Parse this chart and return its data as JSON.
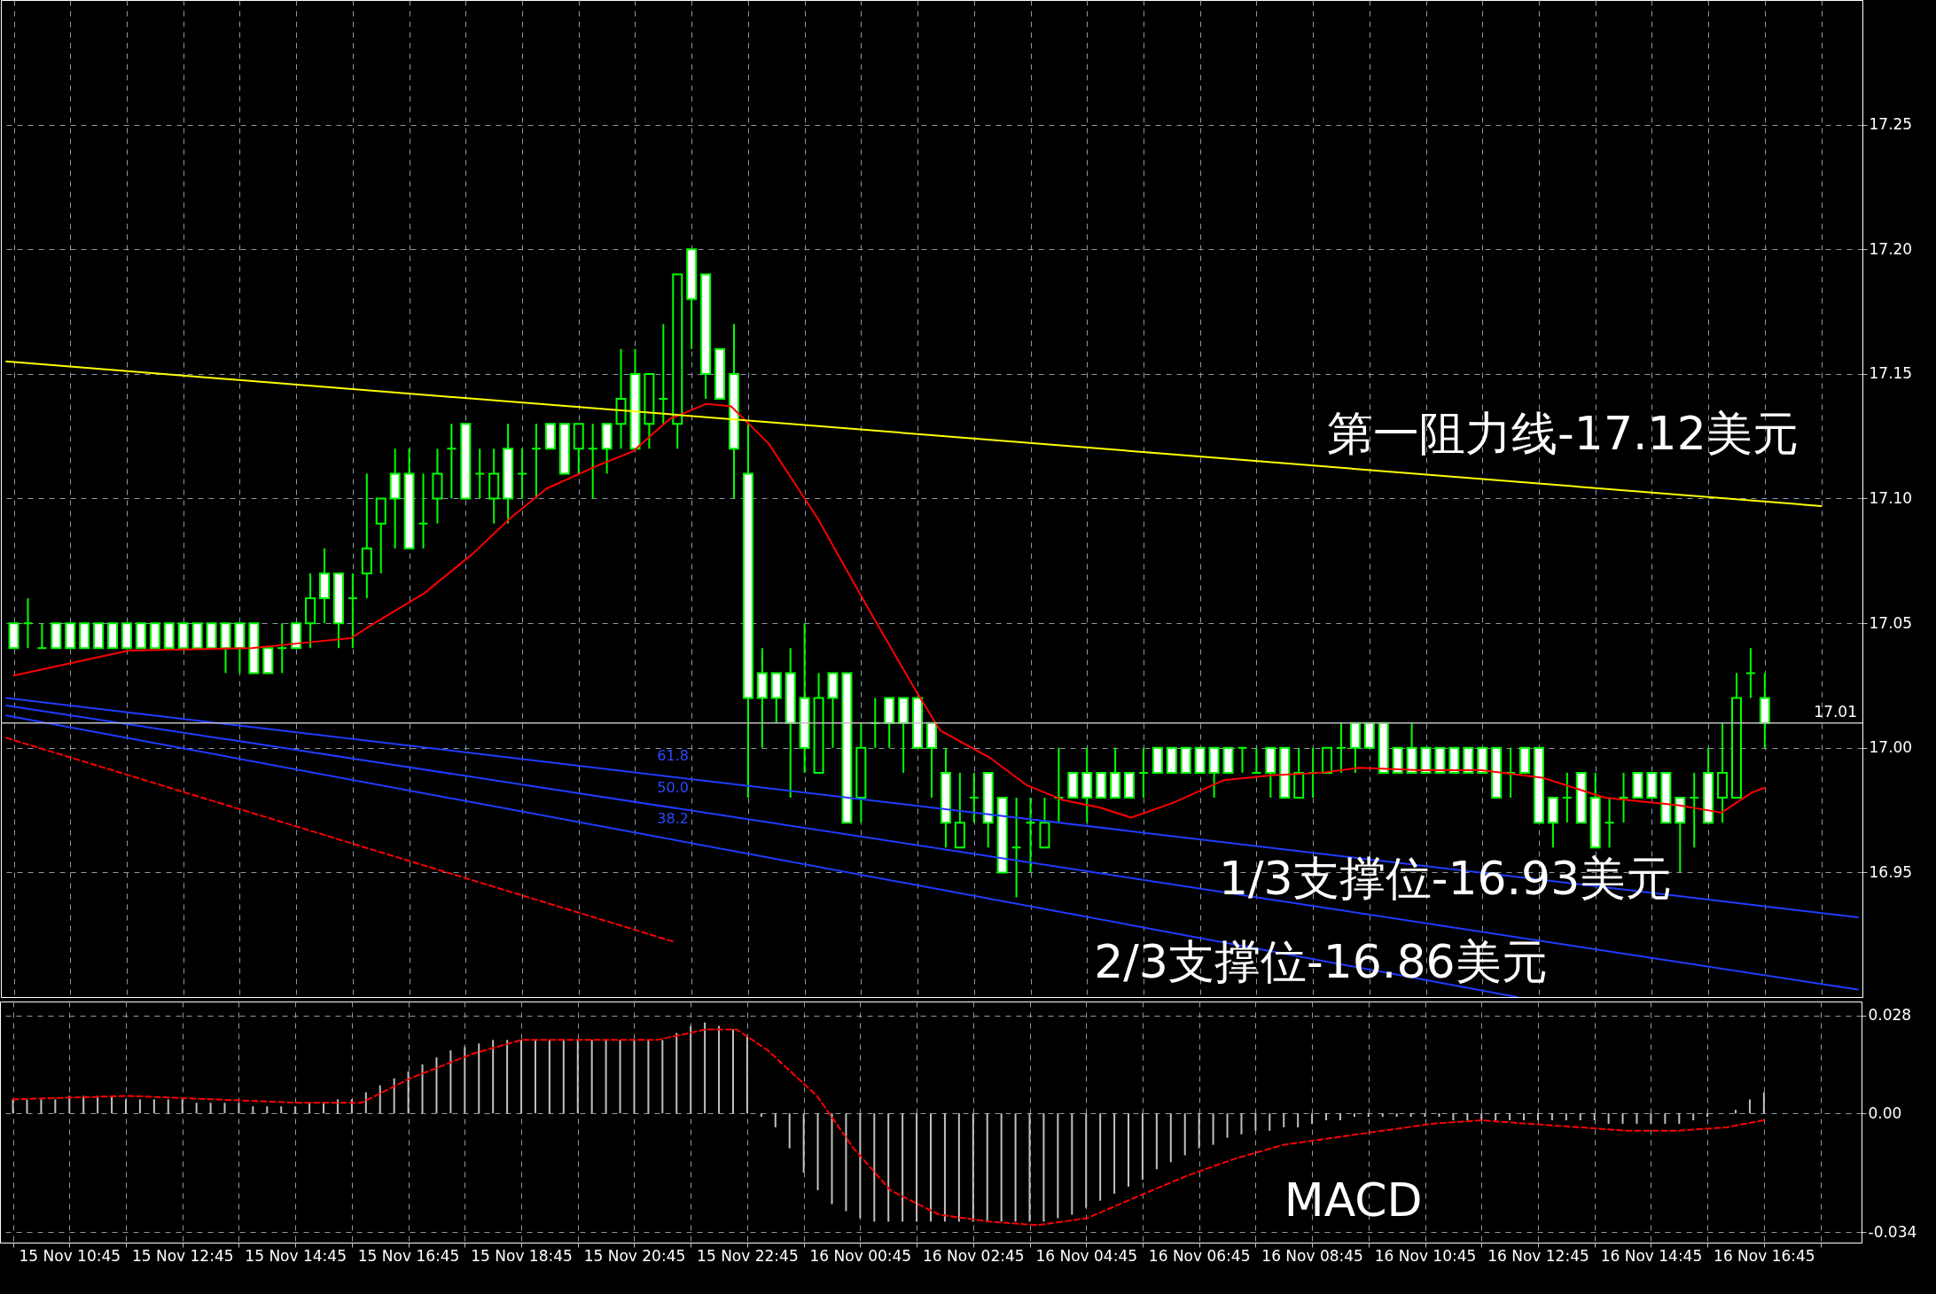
{
  "chart_data": [
    {
      "type": "candlestick",
      "color": "#00ff00",
      "tick_labels": "y",
      "grid": true,
      "xlim": [
        "--11-15T09:36",
        "--11-16T18:24"
      ],
      "ylim": [
        16.9,
        17.3
      ],
      "xticks": [
        {
          "value": "--11-15T09:45",
          "label": null
        },
        {
          "value": "--11-15T10:45",
          "label": null
        },
        {
          "value": "--11-15T11:45",
          "label": null
        },
        {
          "value": "--11-15T12:45",
          "label": null
        },
        {
          "value": "--11-15T13:45",
          "label": null
        },
        {
          "value": "--11-15T14:45",
          "label": null
        },
        {
          "value": "--11-15T15:45",
          "label": null
        },
        {
          "value": "--11-15T16:45",
          "label": null
        },
        {
          "value": "--11-15T17:45",
          "label": null
        },
        {
          "value": "--11-15T18:45",
          "label": null
        },
        {
          "value": "--11-15T19:45",
          "label": null
        },
        {
          "value": "--11-15T20:45",
          "label": null
        },
        {
          "value": "--11-15T21:45",
          "label": null
        },
        {
          "value": "--11-15T22:45",
          "label": null
        },
        {
          "value": "--11-15T23:45",
          "label": null
        },
        {
          "value": "--11-16T00:45",
          "label": null
        },
        {
          "value": "--11-16T01:45",
          "label": null
        },
        {
          "value": "--11-16T02:45",
          "label": null
        },
        {
          "value": "--11-16T03:45",
          "label": null
        },
        {
          "value": "--11-16T04:45",
          "label": null
        },
        {
          "value": "--11-16T05:45",
          "label": null
        },
        {
          "value": "--11-16T06:45",
          "label": null
        },
        {
          "value": "--11-16T07:45",
          "label": null
        },
        {
          "value": "--11-16T08:45",
          "label": null
        },
        {
          "value": "--11-16T09:45",
          "label": null
        },
        {
          "value": "--11-16T10:45",
          "label": null
        },
        {
          "value": "--11-16T11:45",
          "label": null
        },
        {
          "value": "--11-16T12:45",
          "label": null
        },
        {
          "value": "--11-16T13:45",
          "label": null
        },
        {
          "value": "--11-16T14:45",
          "label": null
        },
        {
          "value": "--11-16T15:45",
          "label": null
        },
        {
          "value": "--11-16T16:45",
          "label": null
        },
        {
          "value": "--11-16T17:45",
          "label": null
        }
      ],
      "yticks": [
        16.95,
        {
          "value": 17.0,
          "label": "17.00"
        },
        17.05,
        {
          "value": 17.1,
          "label": "17.10"
        },
        17.15,
        {
          "value": 17.2,
          "label": "17.20"
        },
        17.25
      ],
      "x": [
        "--11-15T09:45",
        "--11-15T10:00",
        "--11-15T10:15",
        "--11-15T10:30",
        "--11-15T10:45",
        "--11-15T11:00",
        "--11-15T11:15",
        "--11-15T11:30",
        "--11-15T11:45",
        "--11-15T12:00",
        "--11-15T12:15",
        "--11-15T12:30",
        "--11-15T12:45",
        "--11-15T13:00",
        "--11-15T13:15",
        "--11-15T13:30",
        "--11-15T13:45",
        "--11-15T14:00",
        "--11-15T14:15",
        "--11-15T14:30",
        "--11-15T14:45",
        "--11-15T15:00",
        "--11-15T15:15",
        "--11-15T15:30",
        "--11-15T15:45",
        "--11-15T16:00",
        "--11-15T16:15",
        "--11-15T16:30",
        "--11-15T16:45",
        "--11-15T17:00",
        "--11-15T17:15",
        "--11-15T17:30",
        "--11-15T17:45",
        "--11-15T18:00",
        "--11-15T18:15",
        "--11-15T18:30",
        "--11-15T18:45",
        "--11-15T19:00",
        "--11-15T19:15",
        "--11-15T19:30",
        "--11-15T19:45",
        "--11-15T20:00",
        "--11-15T20:15",
        "--11-15T20:30",
        "--11-15T20:45",
        "--11-15T21:00",
        "--11-15T21:15",
        "--11-15T21:30",
        "--11-15T21:45",
        "--11-15T22:00",
        "--11-15T22:15",
        "--11-15T22:30",
        "--11-15T22:45",
        "--11-15T23:00",
        "--11-15T23:15",
        "--11-15T23:30",
        "--11-15T23:45",
        "--11-16T00:00",
        "--11-16T00:15",
        "--11-16T00:30",
        "--11-16T00:45",
        "--11-16T01:00",
        "--11-16T01:15",
        "--11-16T01:30",
        "--11-16T01:45",
        "--11-16T02:00",
        "--11-16T02:15",
        "--11-16T02:30",
        "--11-16T02:45",
        "--11-16T03:00",
        "--11-16T03:15",
        "--11-16T03:30",
        "--11-16T03:45",
        "--11-16T04:00",
        "--11-16T04:15",
        "--11-16T04:30",
        "--11-16T04:45",
        "--11-16T05:00",
        "--11-16T05:15",
        "--11-16T05:30",
        "--11-16T05:45",
        "--11-16T06:00",
        "--11-16T06:15",
        "--11-16T06:30",
        "--11-16T06:45",
        "--11-16T07:00",
        "--11-16T07:15",
        "--11-16T07:30",
        "--11-16T07:45",
        "--11-16T08:00",
        "--11-16T08:15",
        "--11-16T08:30",
        "--11-16T08:45",
        "--11-16T09:00",
        "--11-16T09:15",
        "--11-16T09:30",
        "--11-16T09:45",
        "--11-16T10:00",
        "--11-16T10:15",
        "--11-16T10:30",
        "--11-16T10:45",
        "--11-16T11:00",
        "--11-16T11:15",
        "--11-16T11:30",
        "--11-16T11:45",
        "--11-16T12:00",
        "--11-16T12:15",
        "--11-16T12:30",
        "--11-16T12:45",
        "--11-16T13:00",
        "--11-16T13:15",
        "--11-16T13:30",
        "--11-16T13:45",
        "--11-16T14:00",
        "--11-16T14:15",
        "--11-16T14:30",
        "--11-16T14:45",
        "--11-16T15:00",
        "--11-16T15:15",
        "--11-16T15:30",
        "--11-16T15:45",
        "--11-16T16:00",
        "--11-16T16:15",
        "--11-16T16:30",
        "--11-16T16:45"
      ],
      "ohlc": [
        [
          17.05,
          17.05,
          17.04,
          17.04
        ],
        [
          17.05,
          17.06,
          17.04,
          17.05
        ],
        [
          17.04,
          17.05,
          17.04,
          17.04
        ],
        [
          17.05,
          17.05,
          17.04,
          17.04
        ],
        [
          17.05,
          17.05,
          17.04,
          17.04
        ],
        [
          17.05,
          17.05,
          17.04,
          17.04
        ],
        [
          17.05,
          17.05,
          17.04,
          17.04
        ],
        [
          17.05,
          17.05,
          17.04,
          17.04
        ],
        [
          17.05,
          17.05,
          17.04,
          17.04
        ],
        [
          17.05,
          17.05,
          17.04,
          17.04
        ],
        [
          17.05,
          17.05,
          17.04,
          17.04
        ],
        [
          17.05,
          17.05,
          17.04,
          17.04
        ],
        [
          17.05,
          17.05,
          17.04,
          17.04
        ],
        [
          17.05,
          17.05,
          17.04,
          17.04
        ],
        [
          17.05,
          17.05,
          17.04,
          17.04
        ],
        [
          17.05,
          17.05,
          17.03,
          17.04
        ],
        [
          17.05,
          17.05,
          17.03,
          17.04
        ],
        [
          17.05,
          17.05,
          17.03,
          17.03
        ],
        [
          17.04,
          17.04,
          17.03,
          17.03
        ],
        [
          17.04,
          17.05,
          17.03,
          17.04
        ],
        [
          17.05,
          17.05,
          17.04,
          17.04
        ],
        [
          17.05,
          17.07,
          17.04,
          17.06
        ],
        [
          17.07,
          17.08,
          17.05,
          17.06
        ],
        [
          17.07,
          17.07,
          17.04,
          17.05
        ],
        [
          17.06,
          17.07,
          17.04,
          17.06
        ],
        [
          17.07,
          17.11,
          17.06,
          17.08
        ],
        [
          17.09,
          17.1,
          17.07,
          17.1
        ],
        [
          17.11,
          17.12,
          17.08,
          17.1
        ],
        [
          17.11,
          17.12,
          17.08,
          17.08
        ],
        [
          17.09,
          17.11,
          17.08,
          17.09
        ],
        [
          17.1,
          17.12,
          17.09,
          17.11
        ],
        [
          17.12,
          17.13,
          17.1,
          17.12
        ],
        [
          17.13,
          17.13,
          17.1,
          17.1
        ],
        [
          17.11,
          17.12,
          17.1,
          17.11
        ],
        [
          17.1,
          17.12,
          17.09,
          17.11
        ],
        [
          17.12,
          17.13,
          17.09,
          17.1
        ],
        [
          17.11,
          17.12,
          17.1,
          17.11
        ],
        [
          17.12,
          17.13,
          17.1,
          17.12
        ],
        [
          17.13,
          17.13,
          17.12,
          17.12
        ],
        [
          17.13,
          17.13,
          17.11,
          17.11
        ],
        [
          17.12,
          17.13,
          17.11,
          17.13
        ],
        [
          17.12,
          17.13,
          17.1,
          17.12
        ],
        [
          17.13,
          17.13,
          17.11,
          17.12
        ],
        [
          17.13,
          17.16,
          17.12,
          17.14
        ],
        [
          17.15,
          17.16,
          17.12,
          17.12
        ],
        [
          17.13,
          17.15,
          17.12,
          17.15
        ],
        [
          17.14,
          17.17,
          17.13,
          17.14
        ],
        [
          17.13,
          17.19,
          17.12,
          17.19
        ],
        [
          17.2,
          17.2,
          17.16,
          17.18
        ],
        [
          17.19,
          17.19,
          17.14,
          17.15
        ],
        [
          17.16,
          17.16,
          17.14,
          17.14
        ],
        [
          17.15,
          17.17,
          17.1,
          17.12
        ],
        [
          17.11,
          17.13,
          16.98,
          17.02
        ],
        [
          17.03,
          17.04,
          17.0,
          17.02
        ],
        [
          17.03,
          17.03,
          17.01,
          17.02
        ],
        [
          17.03,
          17.04,
          16.98,
          17.01
        ],
        [
          17.02,
          17.05,
          16.99,
          17.0
        ],
        [
          16.99,
          17.03,
          16.99,
          17.02
        ],
        [
          17.03,
          17.03,
          17.0,
          17.02
        ],
        [
          17.03,
          17.03,
          16.97,
          16.97
        ],
        [
          16.98,
          17.01,
          16.97,
          17.0
        ],
        [
          17.01,
          17.02,
          17.0,
          17.01
        ],
        [
          17.02,
          17.02,
          17.0,
          17.01
        ],
        [
          17.02,
          17.02,
          16.99,
          17.01
        ],
        [
          17.02,
          17.02,
          17.0,
          17.0
        ],
        [
          17.01,
          17.01,
          16.98,
          17.0
        ],
        [
          16.99,
          17.0,
          16.96,
          16.97
        ],
        [
          16.96,
          16.99,
          16.96,
          16.97
        ],
        [
          16.98,
          16.99,
          16.97,
          16.98
        ],
        [
          16.99,
          16.99,
          16.96,
          16.97
        ],
        [
          16.98,
          16.98,
          16.95,
          16.95
        ],
        [
          16.96,
          16.98,
          16.94,
          16.96
        ],
        [
          16.97,
          16.98,
          16.95,
          16.97
        ],
        [
          16.96,
          16.98,
          16.96,
          16.97
        ],
        [
          16.98,
          17.0,
          16.97,
          16.98
        ],
        [
          16.99,
          16.99,
          16.98,
          16.98
        ],
        [
          16.99,
          17.0,
          16.97,
          16.98
        ],
        [
          16.99,
          16.99,
          16.98,
          16.98
        ],
        [
          16.99,
          17.0,
          16.98,
          16.98
        ],
        [
          16.99,
          16.99,
          16.98,
          16.98
        ],
        [
          16.99,
          17.0,
          16.98,
          16.99
        ],
        [
          17.0,
          17.0,
          16.99,
          16.99
        ],
        [
          17.0,
          17.0,
          16.99,
          16.99
        ],
        [
          17.0,
          17.0,
          16.99,
          16.99
        ],
        [
          17.0,
          17.0,
          16.99,
          16.99
        ],
        [
          17.0,
          17.0,
          16.98,
          16.99
        ],
        [
          17.0,
          17.0,
          16.99,
          16.99
        ],
        [
          17.0,
          17.0,
          16.99,
          17.0
        ],
        [
          16.99,
          17.0,
          16.99,
          16.99
        ],
        [
          17.0,
          17.0,
          16.98,
          16.99
        ],
        [
          17.0,
          17.0,
          16.98,
          16.98
        ],
        [
          16.98,
          17.0,
          16.98,
          16.99
        ],
        [
          16.99,
          17.0,
          16.98,
          16.99
        ],
        [
          16.99,
          17.0,
          16.99,
          17.0
        ],
        [
          17.0,
          17.01,
          16.99,
          17.0
        ],
        [
          17.01,
          17.01,
          16.99,
          17.0
        ],
        [
          17.01,
          17.01,
          17.0,
          17.0
        ],
        [
          17.01,
          17.01,
          16.99,
          16.99
        ],
        [
          17.0,
          17.0,
          16.99,
          16.99
        ],
        [
          17.0,
          17.01,
          16.99,
          16.99
        ],
        [
          17.0,
          17.0,
          16.99,
          16.99
        ],
        [
          17.0,
          17.0,
          16.99,
          16.99
        ],
        [
          17.0,
          17.0,
          16.99,
          16.99
        ],
        [
          17.0,
          17.0,
          16.99,
          16.99
        ],
        [
          17.0,
          17.0,
          16.99,
          16.99
        ],
        [
          17.0,
          17.0,
          16.98,
          16.98
        ],
        [
          16.99,
          17.0,
          16.98,
          16.99
        ],
        [
          17.0,
          17.0,
          16.99,
          16.99
        ],
        [
          17.0,
          17.0,
          16.97,
          16.97
        ],
        [
          16.98,
          16.98,
          16.96,
          16.97
        ],
        [
          16.98,
          16.99,
          16.97,
          16.98
        ],
        [
          16.99,
          16.99,
          16.97,
          16.97
        ],
        [
          16.98,
          16.99,
          16.96,
          16.96
        ],
        [
          16.97,
          16.98,
          16.96,
          16.97
        ],
        [
          16.98,
          16.99,
          16.97,
          16.98
        ],
        [
          16.99,
          16.99,
          16.98,
          16.98
        ],
        [
          16.99,
          16.99,
          16.98,
          16.98
        ],
        [
          16.99,
          16.99,
          16.97,
          16.97
        ],
        [
          16.98,
          16.98,
          16.95,
          16.97
        ],
        [
          16.98,
          16.99,
          16.96,
          16.98
        ],
        [
          16.99,
          17.0,
          16.97,
          16.97
        ],
        [
          16.98,
          17.01,
          16.97,
          16.99
        ],
        [
          16.98,
          17.03,
          16.98,
          17.02
        ],
        [
          17.03,
          17.04,
          17.02,
          17.03
        ],
        [
          17.02,
          17.03,
          17.0,
          17.01
        ]
      ],
      "series": [
        {
          "type": "line",
          "color": "#ff0000",
          "x": [
            "--11-15T09:45",
            "--11-15T11:47",
            "--11-15T13:58",
            "--11-15T14:50",
            "--11-15T15:43",
            "--11-15T16:08",
            "--11-15T17:01",
            "--11-15T17:53",
            "--11-15T18:32",
            "--11-15T19:11",
            "--11-15T20:04",
            "--11-15T20:43",
            "--11-15T21:22",
            "--11-15T22:01",
            "--11-15T22:27",
            "--11-15T23:07",
            "--11-15T23:59",
            "--11-16T00:51",
            "--11-16T01:43",
            "--11-16T02:09",
            "--11-16T03:02",
            "--11-16T03:41",
            "--11-16T04:20",
            "--11-16T04:59",
            "--11-16T05:32",
            "--11-16T06:17",
            "--11-16T07:10",
            "--11-16T08:02",
            "--11-16T08:54",
            "--11-16T09:34",
            "--11-16T10:39",
            "--11-16T11:44",
            "--11-16T12:49",
            "--11-16T13:55",
            "--11-16T15:13",
            "--11-16T15:59",
            "--11-16T16:31",
            "--11-16T16:45"
          ],
          "values": [
            17.029,
            17.039,
            17.04,
            17.042,
            17.044,
            17.05,
            17.062,
            17.078,
            17.092,
            17.104,
            17.113,
            17.119,
            17.132,
            17.138,
            17.137,
            17.122,
            17.092,
            17.057,
            17.023,
            17.007,
            16.996,
            16.985,
            16.979,
            16.976,
            16.972,
            16.978,
            16.987,
            16.989,
            16.99,
            16.992,
            16.991,
            16.991,
            16.988,
            16.98,
            16.977,
            16.974,
            16.982,
            16.984
          ]
        },
        {
          "type": "line",
          "color": "#ffff00",
          "x": [
            "--11-15T09:37",
            "--11-16T17:45"
          ],
          "values": [
            17.155,
            17.097
          ]
        },
        {
          "type": "line",
          "color": "#1f3cff",
          "x": [
            "--11-15T09:37",
            "--11-16T18:24"
          ],
          "values": [
            17.02,
            16.932
          ]
        },
        {
          "type": "line",
          "color": "#1f3cff",
          "x": [
            "--11-15T09:37",
            "--11-16T18:24"
          ],
          "values": [
            17.017,
            16.903
          ]
        },
        {
          "type": "line",
          "color": "#1f3cff",
          "x": [
            "--11-15T09:37",
            "--11-16T12:22"
          ],
          "values": [
            17.013,
            16.9
          ]
        },
        {
          "type": "line",
          "color": "#ff0000",
          "line_style": "dashed",
          "x": [
            "--11-15T09:37",
            "--11-15T21:28"
          ],
          "values": [
            17.004,
            16.922
          ]
        }
      ],
      "ref_lines": [
        {
          "axis": "y",
          "value": 17.01,
          "label": "17.01",
          "color": "#c0c0c0"
        }
      ],
      "annotations": [
        "第一阻力线-17.12美元",
        "1/3支撑位-16.93美元",
        "2/3支撑位-16.86美元",
        "61.8",
        "50.0",
        "38.2"
      ]
    },
    {
      "type": "bar",
      "color": "#c0c0c0",
      "grid": true,
      "xlim": [
        "--11-15T09:36",
        "--11-16T18:24"
      ],
      "ylim": [
        -0.037,
        0.032
      ],
      "xticks": [
        {
          "value": "--11-15T09:45",
          "label": null
        },
        {
          "value": "--11-15T10:45",
          "label": "15 Nov 10:45"
        },
        {
          "value": "--11-15T11:45",
          "label": null
        },
        {
          "value": "--11-15T12:45",
          "label": "15 Nov 12:45"
        },
        {
          "value": "--11-15T13:45",
          "label": null
        },
        {
          "value": "--11-15T14:45",
          "label": "15 Nov 14:45"
        },
        {
          "value": "--11-15T15:45",
          "label": null
        },
        {
          "value": "--11-15T16:45",
          "label": "15 Nov 16:45"
        },
        {
          "value": "--11-15T17:45",
          "label": null
        },
        {
          "value": "--11-15T18:45",
          "label": "15 Nov 18:45"
        },
        {
          "value": "--11-15T19:45",
          "label": null
        },
        {
          "value": "--11-15T20:45",
          "label": "15 Nov 20:45"
        },
        {
          "value": "--11-15T21:45",
          "label": null
        },
        {
          "value": "--11-15T22:45",
          "label": "15 Nov 22:45"
        },
        {
          "value": "--11-15T23:45",
          "label": null
        },
        {
          "value": "--11-16T00:45",
          "label": "16 Nov 00:45"
        },
        {
          "value": "--11-16T01:45",
          "label": null
        },
        {
          "value": "--11-16T02:45",
          "label": "16 Nov 02:45"
        },
        {
          "value": "--11-16T03:45",
          "label": null
        },
        {
          "value": "--11-16T04:45",
          "label": "16 Nov 04:45"
        },
        {
          "value": "--11-16T05:45",
          "label": null
        },
        {
          "value": "--11-16T06:45",
          "label": "16 Nov 06:45"
        },
        {
          "value": "--11-16T07:45",
          "label": null
        },
        {
          "value": "--11-16T08:45",
          "label": "16 Nov 08:45"
        },
        {
          "value": "--11-16T09:45",
          "label": null
        },
        {
          "value": "--11-16T10:45",
          "label": "16 Nov 10:45"
        },
        {
          "value": "--11-16T11:45",
          "label": null
        },
        {
          "value": "--11-16T12:45",
          "label": "16 Nov 12:45"
        },
        {
          "value": "--11-16T13:45",
          "label": null
        },
        {
          "value": "--11-16T14:45",
          "label": "16 Nov 14:45"
        },
        {
          "value": "--11-16T15:45",
          "label": null
        },
        {
          "value": "--11-16T16:45",
          "label": "16 Nov 16:45"
        },
        {
          "value": "--11-16T17:45",
          "label": null
        }
      ],
      "yticks": [
        0.028,
        {
          "value": 0,
          "label": "0.00"
        },
        -0.034
      ],
      "x": [
        "--11-15T09:45",
        "--11-15T10:00",
        "--11-15T10:15",
        "--11-15T10:30",
        "--11-15T10:45",
        "--11-15T11:00",
        "--11-15T11:15",
        "--11-15T11:30",
        "--11-15T11:45",
        "--11-15T12:00",
        "--11-15T12:15",
        "--11-15T12:30",
        "--11-15T12:45",
        "--11-15T13:00",
        "--11-15T13:15",
        "--11-15T13:30",
        "--11-15T13:45",
        "--11-15T14:00",
        "--11-15T14:15",
        "--11-15T14:30",
        "--11-15T14:45",
        "--11-15T15:00",
        "--11-15T15:15",
        "--11-15T15:30",
        "--11-15T15:45",
        "--11-15T16:00",
        "--11-15T16:15",
        "--11-15T16:30",
        "--11-15T16:45",
        "--11-15T17:00",
        "--11-15T17:15",
        "--11-15T17:30",
        "--11-15T17:45",
        "--11-15T18:00",
        "--11-15T18:15",
        "--11-15T18:30",
        "--11-15T18:45",
        "--11-15T19:00",
        "--11-15T19:15",
        "--11-15T19:30",
        "--11-15T19:45",
        "--11-15T20:00",
        "--11-15T20:15",
        "--11-15T20:30",
        "--11-15T20:45",
        "--11-15T21:00",
        "--11-15T21:15",
        "--11-15T21:30",
        "--11-15T21:45",
        "--11-15T22:00",
        "--11-15T22:15",
        "--11-15T22:30",
        "--11-15T22:45",
        "--11-15T23:00",
        "--11-15T23:15",
        "--11-15T23:30",
        "--11-15T23:45",
        "--11-16T00:00",
        "--11-16T00:15",
        "--11-16T00:30",
        "--11-16T00:45",
        "--11-16T01:00",
        "--11-16T01:15",
        "--11-16T01:30",
        "--11-16T01:45",
        "--11-16T02:00",
        "--11-16T02:15",
        "--11-16T02:30",
        "--11-16T02:45",
        "--11-16T03:00",
        "--11-16T03:15",
        "--11-16T03:30",
        "--11-16T03:45",
        "--11-16T04:00",
        "--11-16T04:15",
        "--11-16T04:30",
        "--11-16T04:45",
        "--11-16T05:00",
        "--11-16T05:15",
        "--11-16T05:30",
        "--11-16T05:45",
        "--11-16T06:00",
        "--11-16T06:15",
        "--11-16T06:30",
        "--11-16T06:45",
        "--11-16T07:00",
        "--11-16T07:15",
        "--11-16T07:30",
        "--11-16T07:45",
        "--11-16T08:00",
        "--11-16T08:15",
        "--11-16T08:30",
        "--11-16T08:45",
        "--11-16T09:00",
        "--11-16T09:15",
        "--11-16T09:30",
        "--11-16T09:45",
        "--11-16T10:00",
        "--11-16T10:15",
        "--11-16T10:30",
        "--11-16T10:45",
        "--11-16T11:00",
        "--11-16T11:15",
        "--11-16T11:30",
        "--11-16T11:45",
        "--11-16T12:00",
        "--11-16T12:15",
        "--11-16T12:30",
        "--11-16T12:45",
        "--11-16T13:00",
        "--11-16T13:15",
        "--11-16T13:30",
        "--11-16T13:45",
        "--11-16T14:00",
        "--11-16T14:15",
        "--11-16T14:30",
        "--11-16T14:45",
        "--11-16T15:00",
        "--11-16T15:15",
        "--11-16T15:30",
        "--11-16T15:45",
        "--11-16T16:00",
        "--11-16T16:15",
        "--11-16T16:30",
        "--11-16T16:45"
      ],
      "values": [
        0.004,
        0.004,
        0.004,
        0.004,
        0.005,
        0.005,
        0.005,
        0.005,
        0.004,
        0.004,
        0.004,
        0.004,
        0.004,
        0.003,
        0.003,
        0.003,
        0.003,
        0.002,
        0.002,
        0.002,
        0.002,
        0.003,
        0.003,
        0.004,
        0.004,
        0.006,
        0.008,
        0.01,
        0.012,
        0.014,
        0.016,
        0.018,
        0.019,
        0.02,
        0.021,
        0.021,
        0.021,
        0.021,
        0.021,
        0.021,
        0.021,
        0.021,
        0.021,
        0.021,
        0.021,
        0.021,
        0.021,
        0.023,
        0.025,
        0.026,
        0.025,
        0.024,
        0.022,
        -0.001,
        -0.004,
        -0.01,
        -0.017,
        -0.022,
        -0.026,
        -0.028,
        -0.03,
        -0.031,
        -0.031,
        -0.031,
        -0.031,
        -0.031,
        -0.031,
        -0.031,
        -0.031,
        -0.031,
        -0.031,
        -0.031,
        -0.031,
        -0.031,
        -0.03,
        -0.029,
        -0.027,
        -0.025,
        -0.023,
        -0.021,
        -0.019,
        -0.016,
        -0.014,
        -0.012,
        -0.01,
        -0.009,
        -0.007,
        -0.006,
        -0.005,
        -0.005,
        -0.004,
        -0.004,
        -0.003,
        -0.002,
        -0.002,
        -0.001,
        -0.001,
        -0.001,
        -0.001,
        -0.001,
        -0.001,
        -0.001,
        -0.002,
        -0.002,
        -0.002,
        -0.002,
        -0.002,
        -0.002,
        -0.002,
        -0.002,
        -0.002,
        -0.002,
        -0.002,
        -0.003,
        -0.003,
        -0.003,
        -0.003,
        -0.003,
        -0.003,
        -0.002,
        -0.001,
        0.0,
        0.001,
        0.004,
        0.006
      ],
      "series": [
        {
          "type": "line",
          "color": "#ff0000",
          "line_style": "dashed",
          "x": [
            "--11-15T09:45",
            "--11-15T11:47",
            "--11-15T14:50",
            "--11-15T15:55",
            "--11-15T16:47",
            "--11-15T17:53",
            "--11-15T18:45",
            "--11-15T21:09",
            "--11-15T22:01",
            "--11-15T22:34",
            "--11-15T23:07",
            "--11-15T23:59",
            "--11-16T00:38",
            "--11-16T01:17",
            "--11-16T02:09",
            "--11-16T03:02",
            "--11-16T03:54",
            "--11-16T04:46",
            "--11-16T05:38",
            "--11-16T06:31",
            "--11-16T07:23",
            "--11-16T08:15",
            "--11-16T09:07",
            "--11-16T10:00",
            "--11-16T10:52",
            "--11-16T11:44",
            "--11-16T12:36",
            "--11-16T13:29",
            "--11-16T14:21",
            "--11-16T15:13",
            "--11-16T16:05",
            "--11-16T16:45"
          ],
          "values": [
            0.004,
            0.005,
            0.003,
            0.003,
            0.01,
            0.017,
            0.021,
            0.021,
            0.024,
            0.024,
            0.018,
            0.005,
            -0.01,
            -0.022,
            -0.029,
            -0.031,
            -0.032,
            -0.03,
            -0.024,
            -0.018,
            -0.013,
            -0.009,
            -0.007,
            -0.005,
            -0.003,
            -0.002,
            -0.003,
            -0.004,
            -0.005,
            -0.005,
            -0.004,
            -0.002
          ]
        }
      ],
      "annotations": [
        "MACD"
      ]
    }
  ]
}
